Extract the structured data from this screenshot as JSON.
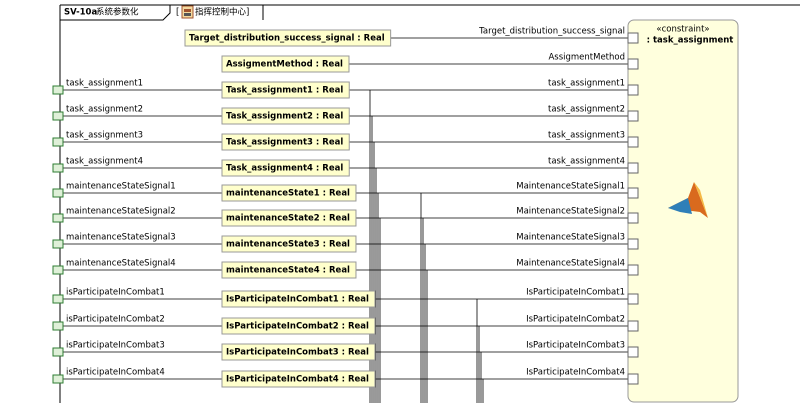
{
  "header": {
    "diagram": "SV-10a",
    "title": "系统参数化",
    "context_prefix": "[",
    "context": "指挥控制中心]"
  },
  "constraint": {
    "stereotype": "«constraint»",
    "name": ": task_assignment"
  },
  "inputs": [
    "task_assignment1",
    "task_assignment2",
    "task_assignment3",
    "task_assignment4",
    "maintenanceStateSignal1",
    "maintenanceStateSignal2",
    "maintenanceStateSignal3",
    "maintenanceStateSignal4",
    "isParticipateInCombat1",
    "isParticipateInCombat2",
    "isParticipateInCombat3",
    "isParticipateInCombat4"
  ],
  "properties": [
    "Target_distribution_success_signal : Real",
    "AssigmentMethod : Real",
    "Task_assignment1 : Real",
    "Task_assignment2 : Real",
    "Task_assignment3 : Real",
    "Task_assignment4 : Real",
    "maintenanceState1 : Real",
    "maintenanceState2 : Real",
    "maintenanceState3 : Real",
    "maintenanceState4 : Real",
    "IsParticipateInCombat1 : Real",
    "IsParticipateInCombat2 : Real",
    "IsParticipateInCombat3 : Real",
    "IsParticipateInCombat4 : Real"
  ],
  "parameters": [
    "Target_distribution_success_signal",
    "AssigmentMethod",
    "task_assignment1",
    "task_assignment2",
    "task_assignment3",
    "task_assignment4",
    "MaintenanceStateSignal1",
    "MaintenanceStateSignal2",
    "MaintenanceStateSignal3",
    "MaintenanceStateSignal4",
    "IsParticipateInCombat1",
    "IsParticipateInCombat2",
    "IsParticipateInCombat3",
    "IsParticipateInCombat4"
  ]
}
